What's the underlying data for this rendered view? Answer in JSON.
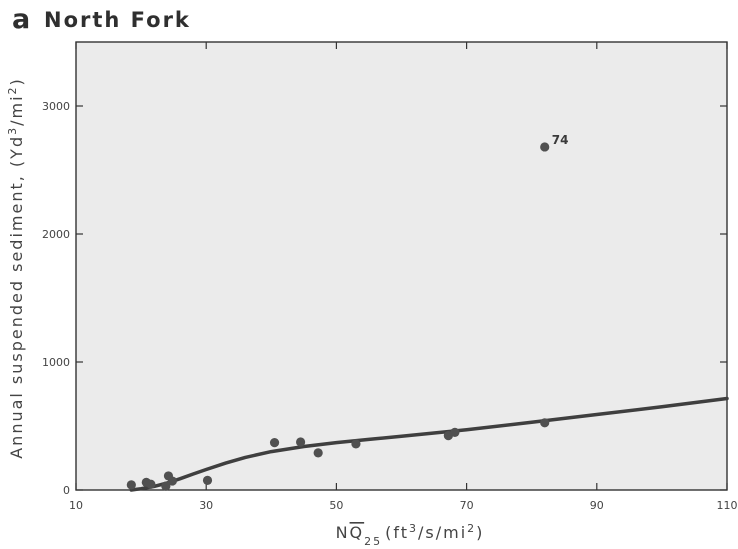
{
  "panel": {
    "letter": "a",
    "title": "North Fork"
  },
  "chart_data": {
    "type": "scatter",
    "title": "North Fork",
    "xlabel_parts": {
      "prefix": "N",
      "q": "Q",
      "sub": "25",
      "mid": "(ft",
      "sup1": "3",
      "mid2": "/s/mi",
      "sup2": "2",
      "suffix": ")"
    },
    "ylabel_parts": {
      "main": "Annual suspended sediment, (Yd",
      "sup1": "3",
      "mid": "/mi",
      "sup2": "2",
      "suffix": ")"
    },
    "xlim": [
      10,
      110
    ],
    "ylim": [
      0,
      3500
    ],
    "x_ticks": [
      10,
      30,
      50,
      70,
      90,
      110
    ],
    "y_ticks": [
      0,
      1000,
      2000,
      3000
    ],
    "grid": false,
    "points": [
      {
        "x": 18.5,
        "y": 40
      },
      {
        "x": 20.8,
        "y": 60
      },
      {
        "x": 21.5,
        "y": 45
      },
      {
        "x": 23.8,
        "y": 30
      },
      {
        "x": 24.2,
        "y": 110
      },
      {
        "x": 24.8,
        "y": 70
      },
      {
        "x": 30.2,
        "y": 75
      },
      {
        "x": 40.5,
        "y": 370
      },
      {
        "x": 44.5,
        "y": 375
      },
      {
        "x": 47.2,
        "y": 290
      },
      {
        "x": 53.0,
        "y": 360
      },
      {
        "x": 67.2,
        "y": 425
      },
      {
        "x": 68.2,
        "y": 450
      },
      {
        "x": 82.0,
        "y": 525
      },
      {
        "x": 82.0,
        "y": 2680,
        "label": "74"
      }
    ],
    "fit_curve": {
      "x": [
        18.5,
        20,
        22,
        24,
        26,
        28,
        30,
        33,
        36,
        40,
        45,
        50,
        55,
        60,
        70,
        80,
        90,
        100,
        110
      ],
      "y": [
        0,
        10,
        28,
        55,
        88,
        125,
        160,
        210,
        255,
        300,
        340,
        370,
        395,
        420,
        470,
        530,
        590,
        650,
        715
      ]
    },
    "colors": {
      "plot_background": "#ebebeb",
      "marker": "#505050",
      "line": "#3f3f3f",
      "axis": "#333333"
    }
  }
}
